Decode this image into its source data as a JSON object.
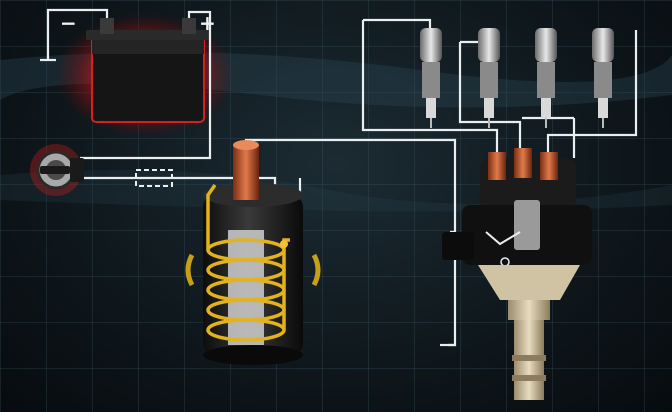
{
  "diagram": {
    "components": {
      "battery": {
        "negative_label": "−",
        "positive_label": "+"
      },
      "ignition_switch": {},
      "resistor": {},
      "ignition_coil": {},
      "distributor": {},
      "spark_plugs": [
        {
          "id": "plug-1"
        },
        {
          "id": "plug-2"
        },
        {
          "id": "plug-3"
        },
        {
          "id": "plug-4"
        }
      ]
    },
    "colors": {
      "wire": "#e9eef0",
      "primary_winding": "#e2b31c",
      "terminal_copper": "#c8653c",
      "battery_glow": "#d21e1e",
      "grid_line": "#3f5b68"
    }
  }
}
